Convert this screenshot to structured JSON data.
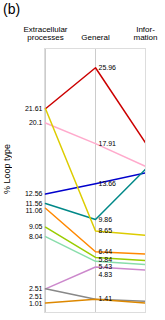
{
  "chart_data": {
    "type": "line",
    "title": "(b)",
    "ylabel": "% Loop type",
    "categories": [
      "Extracellular\nprocesses",
      "General",
      "Infor-\nmation"
    ],
    "series": [
      {
        "color": "#cc0000",
        "values": [
          21.61,
          25.96,
          18.0
        ]
      },
      {
        "color": "#ffaacc",
        "values": [
          20.1,
          17.91,
          15.5
        ]
      },
      {
        "color": "#0000cc",
        "values": [
          12.56,
          13.66,
          14.8
        ]
      },
      {
        "color": "#008888",
        "values": [
          11.56,
          9.86,
          15.2
        ]
      },
      {
        "color": "#ddcc00",
        "values": [
          21.61,
          8.65,
          8.2
        ]
      },
      {
        "color": "#ff8800",
        "values": [
          11.06,
          6.44,
          6.2
        ]
      },
      {
        "color": "#99cc00",
        "values": [
          9.05,
          5.84,
          5.5
        ]
      },
      {
        "color": "#88ddaa",
        "values": [
          8.04,
          5.43,
          5.1
        ]
      },
      {
        "color": "#cc88cc",
        "values": [
          2.51,
          4.83,
          4.5
        ]
      },
      {
        "color": "#888888",
        "values": [
          2.51,
          1.41,
          1.2
        ]
      },
      {
        "color": "#dd8800",
        "values": [
          1.01,
          1.41,
          1.0
        ]
      }
    ],
    "annotations": [
      {
        "x": "Extracellular\nprocesses",
        "y": 21.61,
        "text": "21.61"
      },
      {
        "x": "Extracellular\nprocesses",
        "y": 20.1,
        "text": "20.1"
      },
      {
        "x": "Extracellular\nprocesses",
        "y": 12.56,
        "text": "12.56"
      },
      {
        "x": "Extracellular\nprocesses",
        "y": 11.56,
        "text": "11.56"
      },
      {
        "x": "Extracellular\nprocesses",
        "y": 11.06,
        "text": "11.06"
      },
      {
        "x": "Extracellular\nprocesses",
        "y": 9.05,
        "text": "9.05"
      },
      {
        "x": "Extracellular\nprocesses",
        "y": 8.04,
        "text": "8.04"
      },
      {
        "x": "Extracellular\nprocesses",
        "y": 2.51,
        "text": "2.51"
      },
      {
        "x": "Extracellular\nprocesses",
        "y": 2.51,
        "text": "2.51"
      },
      {
        "x": "Extracellular\nprocesses",
        "y": 1.01,
        "text": "1.01"
      },
      {
        "x": "General",
        "y": 25.96,
        "text": "25.96"
      },
      {
        "x": "General",
        "y": 17.91,
        "text": "17.91"
      },
      {
        "x": "General",
        "y": 13.66,
        "text": "13.66"
      },
      {
        "x": "General",
        "y": 9.86,
        "text": "9.86"
      },
      {
        "x": "General",
        "y": 8.65,
        "text": "8.65"
      },
      {
        "x": "General",
        "y": 6.44,
        "text": "6.44"
      },
      {
        "x": "General",
        "y": 5.84,
        "text": "5.84"
      },
      {
        "x": "General",
        "y": 5.43,
        "text": "5.43"
      },
      {
        "x": "General",
        "y": 4.83,
        "text": "4.83"
      },
      {
        "x": "General",
        "y": 1.41,
        "text": "1.41"
      }
    ],
    "ylim": [
      0,
      28
    ],
    "grid": true,
    "tick_labels": "x"
  }
}
